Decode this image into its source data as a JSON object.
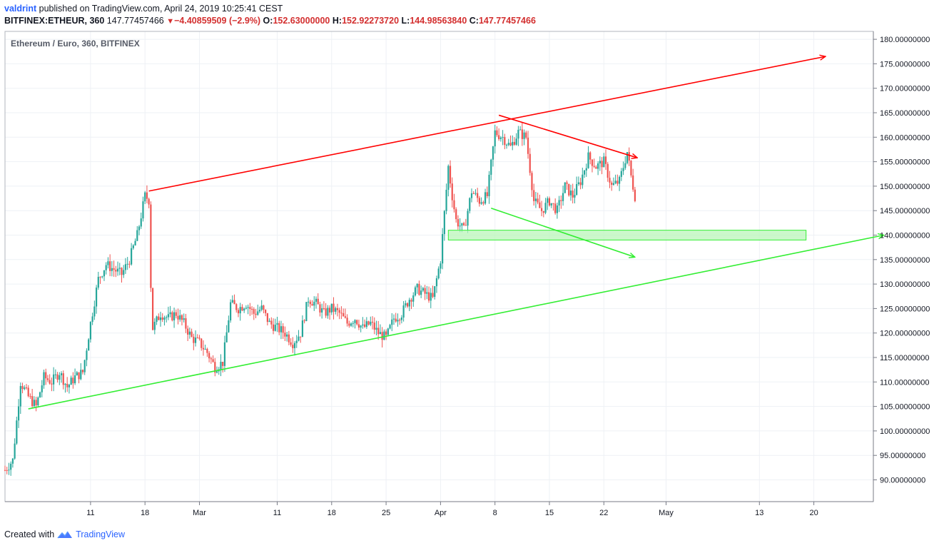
{
  "header": {
    "username": "valdrint",
    "published_text": " published on TradingView.com, April 24, 2019 10:25:41 CEST",
    "symbol": "BITFINEX:ETHEUR, 360",
    "last": "147.77457466",
    "change": "−4.40859509 (−2.9%)",
    "o_label": "O:",
    "o": "152.63000000",
    "h_label": "H:",
    "h": "152.92273720",
    "l_label": "L:",
    "l": "144.98563840",
    "c_label": "C:",
    "c": "147.77457466"
  },
  "footer": {
    "created_with": "Created with",
    "brand": "TradingView"
  },
  "colors": {
    "up": "#26a69a",
    "down": "#ef5350",
    "red_line": "#ff0000",
    "green_line": "#33ee33",
    "support_fill": "#b9f5b9",
    "grid": "#eef1f5"
  },
  "chart_data": {
    "type": "candlestick",
    "title": "Ethereum / Euro, 360, BITFINEX",
    "y_ticks": [
      90,
      95,
      100,
      105,
      110,
      115,
      120,
      125,
      130,
      135,
      140,
      145,
      150,
      155,
      160,
      165,
      170,
      175,
      180
    ],
    "y_tick_labels": [
      "90.00000000",
      "95.00000000",
      "100.00000000",
      "105.00000000",
      "110.00000000",
      "115.00000000",
      "120.00000000",
      "125.00000000",
      "130.00000000",
      "135.00000000",
      "140.00000000",
      "145.00000000",
      "150.00000000",
      "155.00000000",
      "160.00000000",
      "165.00000000",
      "170.00000000",
      "175.00000000",
      "180.00000000"
    ],
    "x_ticks": [
      {
        "label": "11",
        "day": 11
      },
      {
        "label": "18",
        "day": 18
      },
      {
        "label": "Mar",
        "day": 25
      },
      {
        "label": "11",
        "day": 35
      },
      {
        "label": "18",
        "day": 42
      },
      {
        "label": "25",
        "day": 49
      },
      {
        "label": "Apr",
        "day": 56
      },
      {
        "label": "8",
        "day": 63
      },
      {
        "label": "15",
        "day": 70
      },
      {
        "label": "22",
        "day": 77
      },
      {
        "label": "May",
        "day": 85
      },
      {
        "label": "13",
        "day": 97
      },
      {
        "label": "20",
        "day": 104
      }
    ],
    "price_path": [
      [
        0,
        92
      ],
      [
        1,
        94
      ],
      [
        2,
        110
      ],
      [
        3,
        107
      ],
      [
        4,
        105
      ],
      [
        5,
        111
      ],
      [
        6,
        110
      ],
      [
        7,
        112
      ],
      [
        8,
        109
      ],
      [
        9,
        111
      ],
      [
        10,
        112
      ],
      [
        11,
        122
      ],
      [
        12,
        131
      ],
      [
        13,
        134
      ],
      [
        14,
        133
      ],
      [
        15,
        132
      ],
      [
        16,
        135
      ],
      [
        17,
        140
      ],
      [
        18,
        148
      ],
      [
        18.6,
        147
      ],
      [
        18.8,
        124
      ],
      [
        19,
        121
      ],
      [
        20,
        124
      ],
      [
        21,
        123
      ],
      [
        22,
        124
      ],
      [
        23,
        122
      ],
      [
        24,
        119
      ],
      [
        25,
        118
      ],
      [
        26,
        116
      ],
      [
        27,
        113
      ],
      [
        28,
        114
      ],
      [
        29,
        126
      ],
      [
        30,
        125
      ],
      [
        31,
        126
      ],
      [
        32,
        124
      ],
      [
        33,
        125
      ],
      [
        34,
        122
      ],
      [
        35,
        121
      ],
      [
        36,
        120
      ],
      [
        37,
        118
      ],
      [
        38,
        120
      ],
      [
        39,
        127
      ],
      [
        40,
        126
      ],
      [
        41,
        124
      ],
      [
        42,
        125
      ],
      [
        43,
        124
      ],
      [
        44,
        122
      ],
      [
        45,
        123
      ],
      [
        46,
        121
      ],
      [
        47,
        122
      ],
      [
        48,
        120
      ],
      [
        49,
        119
      ],
      [
        50,
        123
      ],
      [
        51,
        124
      ],
      [
        52,
        127
      ],
      [
        53,
        129
      ],
      [
        54,
        128
      ],
      [
        55,
        127
      ],
      [
        56,
        135
      ],
      [
        57,
        154
      ],
      [
        57.5,
        148
      ],
      [
        58,
        143
      ],
      [
        59,
        141
      ],
      [
        60,
        149
      ],
      [
        61,
        147
      ],
      [
        62,
        148
      ],
      [
        63,
        161
      ],
      [
        64,
        160
      ],
      [
        65,
        158
      ],
      [
        66,
        161
      ],
      [
        67,
        160
      ],
      [
        68,
        147
      ],
      [
        69,
        145
      ],
      [
        70,
        147
      ],
      [
        71,
        145
      ],
      [
        72,
        150
      ],
      [
        73,
        148
      ],
      [
        74,
        151
      ],
      [
        75,
        156
      ],
      [
        76,
        154
      ],
      [
        77,
        155
      ],
      [
        78,
        150
      ],
      [
        79,
        151
      ],
      [
        80,
        157
      ],
      [
        80.5,
        152
      ],
      [
        81,
        148
      ]
    ],
    "annotations": {
      "red_upper_trend": {
        "from": [
          18.5,
          149
        ],
        "to": [
          105.5,
          176.5
        ]
      },
      "red_short_trend": {
        "from": [
          63.5,
          164.5
        ],
        "to": [
          81.3,
          155.8
        ]
      },
      "green_lower_trend": {
        "from": [
          3,
          104.5
        ],
        "to": [
          113,
          140
        ]
      },
      "green_short_trend": {
        "from": [
          62.5,
          145.5
        ],
        "to": [
          81,
          135.5
        ]
      },
      "support_zone": {
        "from_day": 57,
        "to_day": 103,
        "low": 139,
        "high": 141
      }
    }
  }
}
